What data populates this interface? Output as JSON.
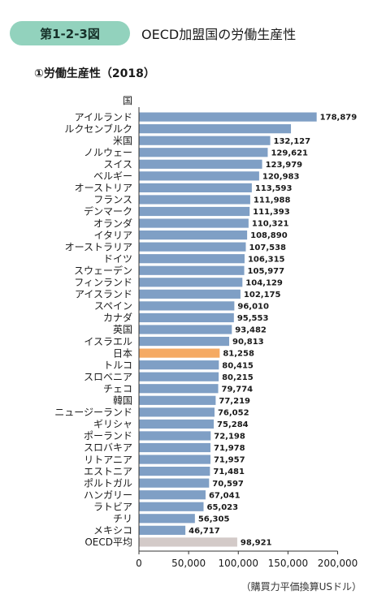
{
  "figure": {
    "badge": "第1-2-3図",
    "title": "OECD加盟国の労働生産性",
    "subtitle": "①労働生産性（2018）",
    "unit_note": "（購買力平価換算USドル）"
  },
  "colors": {
    "bar": "#7f9fc5",
    "highlight": "#f5aa63",
    "average": "#d3cac8",
    "badge": "#92d2bd"
  },
  "chart_data": {
    "type": "bar",
    "orientation": "horizontal",
    "title": "①労働生産性（2018）",
    "ylabel": "国",
    "xlabel": "",
    "unit": "（購買力平価換算USドル）",
    "xlim": [
      0,
      200000
    ],
    "x_ticks": [
      0,
      50000,
      100000,
      150000,
      200000
    ],
    "x_tick_labels": [
      "0",
      "50,000",
      "100,000",
      "150,000",
      "200,000"
    ],
    "grid": false,
    "categories": [
      "アイルランド",
      "ルクセンブルク",
      "米国",
      "ノルウェー",
      "スイス",
      "ベルギー",
      "オーストリア",
      "フランス",
      "デンマーク",
      "オランダ",
      "イタリア",
      "オーストラリア",
      "ドイツ",
      "スウェーデン",
      "フィンランド",
      "アイスランド",
      "スペイン",
      "カナダ",
      "英国",
      "イスラエル",
      "日本",
      "トルコ",
      "スロベニア",
      "チェコ",
      "韓国",
      "ニュージーランド",
      "ギリシャ",
      "ポーランド",
      "スロバキア",
      "リトアニア",
      "エストニア",
      "ポルトガル",
      "ハンガリー",
      "ラトビア",
      "チリ",
      "メキシコ",
      "OECD平均"
    ],
    "values": [
      178879,
      153000,
      132127,
      129621,
      123979,
      120983,
      113593,
      111988,
      111393,
      110321,
      108890,
      107538,
      106315,
      105977,
      104129,
      102175,
      96010,
      95553,
      93482,
      90813,
      81258,
      80415,
      80215,
      79774,
      77219,
      76052,
      75284,
      72198,
      71978,
      71957,
      71481,
      70597,
      67041,
      65023,
      56305,
      46717,
      98921
    ],
    "value_labels": [
      "178,879",
      "",
      "132,127",
      "129,621",
      "123,979",
      "120,983",
      "113,593",
      "111,988",
      "111,393",
      "110,321",
      "108,890",
      "107,538",
      "106,315",
      "105,977",
      "104,129",
      "102,175",
      "96,010",
      "95,553",
      "93,482",
      "90,813",
      "81,258",
      "80,415",
      "80,215",
      "79,774",
      "77,219",
      "76,052",
      "75,284",
      "72,198",
      "71,978",
      "71,957",
      "71,481",
      "70,597",
      "67,041",
      "65,023",
      "56,305",
      "46,717",
      "98,921"
    ],
    "highlight": "日本",
    "average_label": "OECD平均"
  }
}
